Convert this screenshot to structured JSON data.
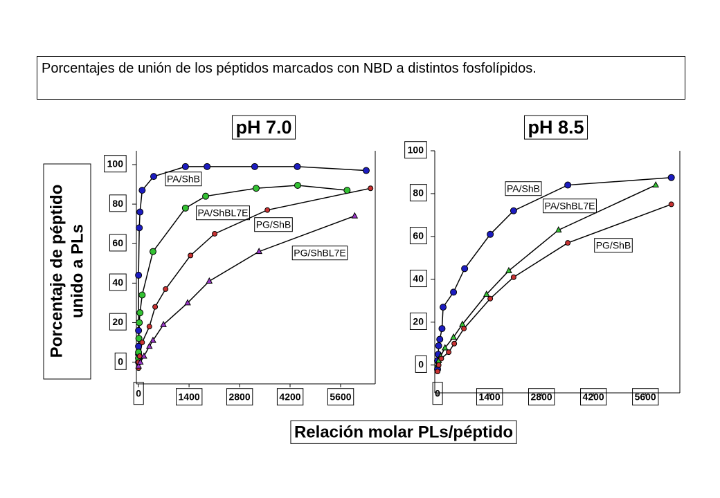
{
  "caption": "Porcentajes de unión de los péptidos marcados con NBD a distintos fosfolípidos.",
  "ylabel": [
    "Porcentaje de péptido",
    "unido a PLs"
  ],
  "xlabel": "Relación molar PLs/péptido",
  "chart_data": [
    {
      "type": "line",
      "title": "pH 7.0",
      "xlim": [
        -60,
        6560
      ],
      "ylim": [
        -11,
        107
      ],
      "xticks": [
        0,
        1400,
        2800,
        4200,
        5600
      ],
      "yticks": [
        0,
        20,
        40,
        60,
        80,
        100
      ],
      "series": [
        {
          "name": "PA/ShB",
          "color": "#1c1cc0",
          "marker": "circle",
          "x": [
            0,
            0,
            0,
            0,
            0,
            20,
            40,
            100,
            420,
            1300,
            1900,
            3220,
            4400,
            6310
          ],
          "values": [
            0,
            4,
            8,
            16,
            44,
            68,
            76,
            87,
            94,
            99,
            99,
            99,
            99,
            97
          ]
        },
        {
          "name": "PA/ShBL7E",
          "color": "#33c133",
          "marker": "circle",
          "x": [
            0,
            0,
            10,
            20,
            40,
            100,
            400,
            1300,
            1860,
            3260,
            4410,
            5780
          ],
          "values": [
            2,
            5,
            12,
            20,
            25,
            34,
            56,
            78,
            84,
            88,
            89.5,
            87
          ]
        },
        {
          "name": "PG/ShB",
          "color": "#c83232",
          "marker": "circle",
          "x": [
            0,
            0,
            30,
            100,
            300,
            460,
            750,
            1440,
            2110,
            3570,
            6430
          ],
          "values": [
            -3,
            0,
            3,
            10,
            18,
            28,
            37,
            54,
            65,
            77,
            88
          ]
        },
        {
          "name": "PG/ShBL7E",
          "color": "#9a36c8",
          "marker": "triangle",
          "x": [
            0,
            50,
            150,
            300,
            400,
            690,
            1360,
            1960,
            3340,
            5990
          ],
          "values": [
            -2,
            0,
            3,
            8,
            11,
            19,
            30,
            41,
            56,
            74
          ]
        }
      ]
    },
    {
      "type": "line",
      "title": "pH 8.5",
      "xlim": [
        -75,
        6530
      ],
      "ylim": [
        -13,
        100
      ],
      "xticks": [
        0,
        1400,
        2800,
        4200,
        5600
      ],
      "yticks": [
        0,
        20,
        40,
        60,
        80,
        100
      ],
      "series": [
        {
          "name": "PA/ShB",
          "color": "#1c1cc0",
          "marker": "circle",
          "x": [
            0,
            0,
            20,
            30,
            60,
            120,
            150,
            430,
            730,
            1420,
            2050,
            3510,
            6300
          ],
          "values": [
            -2,
            2,
            5,
            9,
            12,
            17,
            27,
            34,
            45,
            61,
            72,
            84,
            87.5
          ]
        },
        {
          "name": "PA/ShBL7E",
          "color": "#33c133",
          "marker": "triangle",
          "x": [
            0,
            30,
            80,
            200,
            430,
            670,
            1320,
            1920,
            3260,
            5880
          ],
          "values": [
            0,
            2,
            4,
            8,
            13,
            19,
            33,
            44,
            63,
            84
          ]
        },
        {
          "name": "PG/ShB",
          "color": "#c83232",
          "marker": "circle",
          "x": [
            0,
            30,
            100,
            300,
            450,
            710,
            1420,
            2050,
            3510,
            6300
          ],
          "values": [
            -3,
            0,
            3,
            6,
            10,
            17,
            31,
            41,
            57,
            75
          ]
        }
      ]
    }
  ]
}
